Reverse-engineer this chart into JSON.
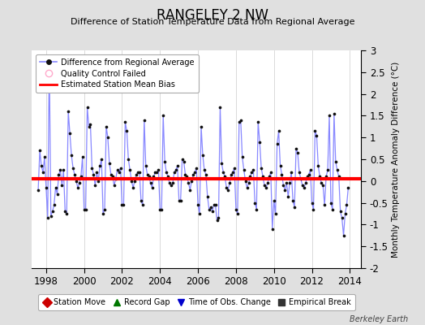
{
  "title": "RANGELEY 2 NW",
  "subtitle": "Difference of Station Temperature Data from Regional Average",
  "ylabel": "Monthly Temperature Anomaly Difference (°C)",
  "xlabel_years": [
    1998,
    2000,
    2002,
    2004,
    2006,
    2008,
    2010,
    2012,
    2014
  ],
  "ylim": [
    -2,
    3
  ],
  "yticks": [
    -2,
    -1.5,
    -1,
    -0.5,
    0,
    0.5,
    1,
    1.5,
    2,
    2.5,
    3
  ],
  "bias_value": 0.05,
  "background_color": "#e0e0e0",
  "plot_bg_color": "#ffffff",
  "line_color": "#8888ff",
  "dot_color": "#111111",
  "bias_color": "#ff0000",
  "watermark": "Berkeley Earth",
  "data": [
    [
      1997.583,
      -0.2
    ],
    [
      1997.667,
      0.7
    ],
    [
      1997.75,
      0.35
    ],
    [
      1997.833,
      0.2
    ],
    [
      1997.917,
      0.55
    ],
    [
      1998.0,
      -0.15
    ],
    [
      1998.083,
      -0.85
    ],
    [
      1998.167,
      2.8
    ],
    [
      1998.25,
      -0.8
    ],
    [
      1998.333,
      -0.7
    ],
    [
      1998.417,
      -0.55
    ],
    [
      1998.5,
      -0.15
    ],
    [
      1998.583,
      -0.3
    ],
    [
      1998.667,
      0.15
    ],
    [
      1998.75,
      0.25
    ],
    [
      1998.833,
      -0.1
    ],
    [
      1998.917,
      0.25
    ],
    [
      1999.0,
      -0.7
    ],
    [
      1999.083,
      -0.75
    ],
    [
      1999.167,
      1.6
    ],
    [
      1999.25,
      1.1
    ],
    [
      1999.333,
      0.6
    ],
    [
      1999.417,
      0.3
    ],
    [
      1999.5,
      0.15
    ],
    [
      1999.583,
      0.0
    ],
    [
      1999.667,
      -0.15
    ],
    [
      1999.75,
      -0.05
    ],
    [
      1999.833,
      0.1
    ],
    [
      1999.917,
      0.55
    ],
    [
      2000.0,
      -0.65
    ],
    [
      2000.083,
      -0.65
    ],
    [
      2000.167,
      1.7
    ],
    [
      2000.25,
      1.25
    ],
    [
      2000.333,
      1.3
    ],
    [
      2000.417,
      0.3
    ],
    [
      2000.5,
      0.15
    ],
    [
      2000.583,
      -0.1
    ],
    [
      2000.667,
      0.2
    ],
    [
      2000.75,
      0.0
    ],
    [
      2000.833,
      0.35
    ],
    [
      2000.917,
      0.5
    ],
    [
      2001.0,
      -0.75
    ],
    [
      2001.083,
      -0.65
    ],
    [
      2001.167,
      1.25
    ],
    [
      2001.25,
      1.0
    ],
    [
      2001.333,
      0.4
    ],
    [
      2001.417,
      0.15
    ],
    [
      2001.5,
      0.1
    ],
    [
      2001.583,
      -0.1
    ],
    [
      2001.667,
      0.05
    ],
    [
      2001.75,
      0.25
    ],
    [
      2001.833,
      0.2
    ],
    [
      2001.917,
      0.3
    ],
    [
      2002.0,
      -0.55
    ],
    [
      2002.083,
      -0.55
    ],
    [
      2002.167,
      1.35
    ],
    [
      2002.25,
      1.15
    ],
    [
      2002.333,
      0.5
    ],
    [
      2002.417,
      0.25
    ],
    [
      2002.5,
      0.0
    ],
    [
      2002.583,
      -0.15
    ],
    [
      2002.667,
      0.0
    ],
    [
      2002.75,
      0.15
    ],
    [
      2002.833,
      0.2
    ],
    [
      2002.917,
      0.2
    ],
    [
      2003.0,
      -0.45
    ],
    [
      2003.083,
      -0.55
    ],
    [
      2003.167,
      1.4
    ],
    [
      2003.25,
      0.35
    ],
    [
      2003.333,
      0.15
    ],
    [
      2003.417,
      0.1
    ],
    [
      2003.5,
      -0.05
    ],
    [
      2003.583,
      -0.15
    ],
    [
      2003.667,
      0.1
    ],
    [
      2003.75,
      0.2
    ],
    [
      2003.833,
      0.2
    ],
    [
      2003.917,
      0.25
    ],
    [
      2004.0,
      -0.65
    ],
    [
      2004.083,
      -0.65
    ],
    [
      2004.167,
      1.5
    ],
    [
      2004.25,
      0.45
    ],
    [
      2004.333,
      0.2
    ],
    [
      2004.417,
      0.1
    ],
    [
      2004.5,
      -0.05
    ],
    [
      2004.583,
      -0.1
    ],
    [
      2004.667,
      -0.05
    ],
    [
      2004.75,
      0.2
    ],
    [
      2004.833,
      0.25
    ],
    [
      2004.917,
      0.35
    ],
    [
      2005.0,
      -0.45
    ],
    [
      2005.083,
      -0.45
    ],
    [
      2005.167,
      0.5
    ],
    [
      2005.25,
      0.45
    ],
    [
      2005.333,
      0.15
    ],
    [
      2005.417,
      0.1
    ],
    [
      2005.5,
      -0.05
    ],
    [
      2005.583,
      -0.2
    ],
    [
      2005.667,
      0.0
    ],
    [
      2005.75,
      0.15
    ],
    [
      2005.833,
      0.2
    ],
    [
      2005.917,
      0.3
    ],
    [
      2006.0,
      -0.55
    ],
    [
      2006.083,
      -0.75
    ],
    [
      2006.167,
      1.25
    ],
    [
      2006.25,
      0.6
    ],
    [
      2006.333,
      0.25
    ],
    [
      2006.417,
      0.15
    ],
    [
      2006.5,
      -0.35
    ],
    [
      2006.583,
      -0.65
    ],
    [
      2006.667,
      -0.6
    ],
    [
      2006.75,
      -0.7
    ],
    [
      2006.833,
      -0.55
    ],
    [
      2006.917,
      -0.55
    ],
    [
      2007.0,
      -0.9
    ],
    [
      2007.083,
      -0.85
    ],
    [
      2007.167,
      1.7
    ],
    [
      2007.25,
      0.4
    ],
    [
      2007.333,
      0.2
    ],
    [
      2007.417,
      0.1
    ],
    [
      2007.5,
      -0.15
    ],
    [
      2007.583,
      -0.2
    ],
    [
      2007.667,
      -0.05
    ],
    [
      2007.75,
      0.15
    ],
    [
      2007.833,
      0.2
    ],
    [
      2007.917,
      0.3
    ],
    [
      2008.0,
      -0.65
    ],
    [
      2008.083,
      -0.75
    ],
    [
      2008.167,
      1.35
    ],
    [
      2008.25,
      1.4
    ],
    [
      2008.333,
      0.55
    ],
    [
      2008.417,
      0.25
    ],
    [
      2008.5,
      0.0
    ],
    [
      2008.583,
      -0.15
    ],
    [
      2008.667,
      -0.05
    ],
    [
      2008.75,
      0.1
    ],
    [
      2008.833,
      0.2
    ],
    [
      2008.917,
      0.25
    ],
    [
      2009.0,
      -0.5
    ],
    [
      2009.083,
      -0.65
    ],
    [
      2009.167,
      1.35
    ],
    [
      2009.25,
      0.9
    ],
    [
      2009.333,
      0.3
    ],
    [
      2009.417,
      0.1
    ],
    [
      2009.5,
      -0.1
    ],
    [
      2009.583,
      -0.15
    ],
    [
      2009.667,
      -0.05
    ],
    [
      2009.75,
      0.1
    ],
    [
      2009.833,
      0.2
    ],
    [
      2009.917,
      -1.1
    ],
    [
      2010.0,
      -0.45
    ],
    [
      2010.083,
      -0.75
    ],
    [
      2010.167,
      0.85
    ],
    [
      2010.25,
      1.15
    ],
    [
      2010.333,
      0.35
    ],
    [
      2010.417,
      0.15
    ],
    [
      2010.5,
      -0.1
    ],
    [
      2010.583,
      -0.2
    ],
    [
      2010.667,
      -0.05
    ],
    [
      2010.75,
      -0.35
    ],
    [
      2010.833,
      -0.05
    ],
    [
      2010.917,
      0.2
    ],
    [
      2011.0,
      -0.45
    ],
    [
      2011.083,
      -0.6
    ],
    [
      2011.167,
      0.75
    ],
    [
      2011.25,
      0.65
    ],
    [
      2011.333,
      0.2
    ],
    [
      2011.417,
      0.05
    ],
    [
      2011.5,
      -0.1
    ],
    [
      2011.583,
      -0.15
    ],
    [
      2011.667,
      -0.05
    ],
    [
      2011.75,
      0.1
    ],
    [
      2011.833,
      0.15
    ],
    [
      2011.917,
      0.25
    ],
    [
      2012.0,
      -0.5
    ],
    [
      2012.083,
      -0.65
    ],
    [
      2012.167,
      1.15
    ],
    [
      2012.25,
      1.05
    ],
    [
      2012.333,
      0.35
    ],
    [
      2012.417,
      0.1
    ],
    [
      2012.5,
      -0.05
    ],
    [
      2012.583,
      -0.1
    ],
    [
      2012.667,
      -0.55
    ],
    [
      2012.75,
      0.1
    ],
    [
      2012.833,
      0.25
    ],
    [
      2012.917,
      1.5
    ],
    [
      2013.0,
      -0.5
    ],
    [
      2013.083,
      -0.65
    ],
    [
      2013.167,
      1.55
    ],
    [
      2013.25,
      0.45
    ],
    [
      2013.333,
      0.25
    ],
    [
      2013.417,
      0.1
    ],
    [
      2013.5,
      -0.7
    ],
    [
      2013.583,
      -0.85
    ],
    [
      2013.667,
      -1.25
    ],
    [
      2013.75,
      -0.75
    ],
    [
      2013.833,
      -0.55
    ],
    [
      2013.917,
      -0.15
    ]
  ],
  "legend2_items": [
    {
      "label": "Station Move",
      "color": "#cc0000",
      "marker": "D"
    },
    {
      "label": "Record Gap",
      "color": "#007700",
      "marker": "^"
    },
    {
      "label": "Time of Obs. Change",
      "color": "#0000cc",
      "marker": "v"
    },
    {
      "label": "Empirical Break",
      "color": "#333333",
      "marker": "s"
    }
  ]
}
